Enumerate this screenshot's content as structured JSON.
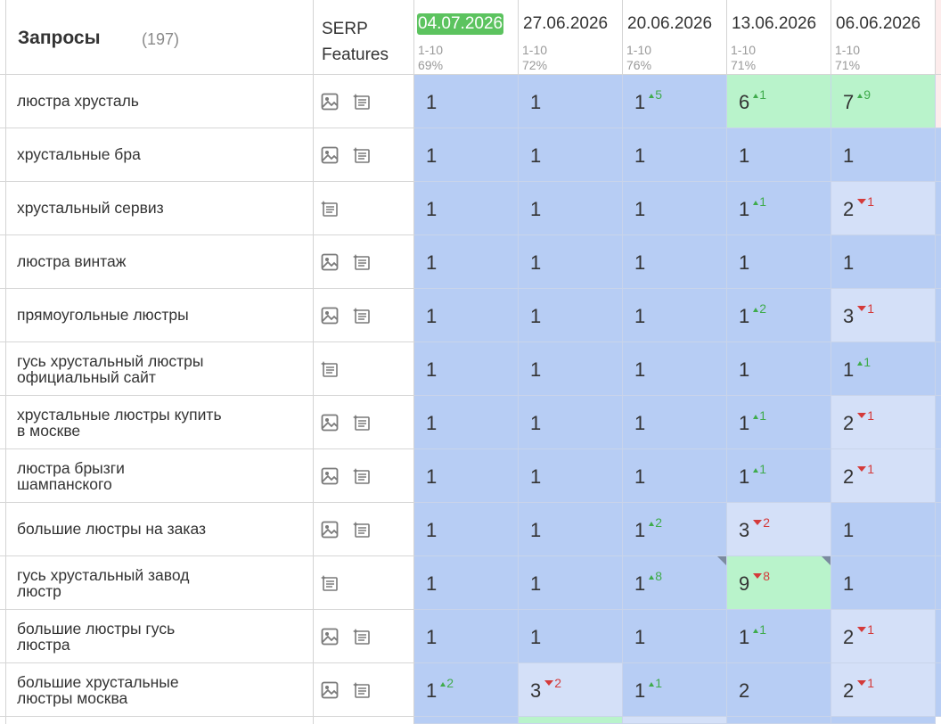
{
  "header": {
    "title": "Запросы",
    "count": "(197)",
    "serp_label_1": "SERP",
    "serp_label_2": "Features"
  },
  "dates": [
    {
      "date": "04.07.2026",
      "range": "1-10",
      "pct": "69%",
      "active": true
    },
    {
      "date": "27.06.2026",
      "range": "1-10",
      "pct": "72%",
      "active": false
    },
    {
      "date": "20.06.2026",
      "range": "1-10",
      "pct": "76%",
      "active": false
    },
    {
      "date": "13.06.2026",
      "range": "1-10",
      "pct": "71%",
      "active": false
    },
    {
      "date": "06.06.2026",
      "range": "1-10",
      "pct": "71%",
      "active": false
    }
  ],
  "rows": [
    {
      "query": [
        "люстра хрусталь"
      ],
      "icons": [
        "image-icon",
        "snippet-icon"
      ],
      "cells": [
        {
          "v": "1",
          "c": "top"
        },
        {
          "v": "1",
          "c": "top"
        },
        {
          "v": "1",
          "d": "5",
          "dir": "up",
          "c": "top"
        },
        {
          "v": "6",
          "d": "1",
          "dir": "up",
          "c": "green"
        },
        {
          "v": "7",
          "d": "9",
          "dir": "up",
          "c": "green"
        }
      ]
    },
    {
      "query": [
        "хрустальные бра"
      ],
      "icons": [
        "image-icon",
        "snippet-icon"
      ],
      "cells": [
        {
          "v": "1",
          "c": "top"
        },
        {
          "v": "1",
          "c": "top"
        },
        {
          "v": "1",
          "c": "top"
        },
        {
          "v": "1",
          "c": "top"
        },
        {
          "v": "1",
          "c": "top"
        }
      ]
    },
    {
      "query": [
        "хрустальный сервиз"
      ],
      "icons": [
        "snippet-icon"
      ],
      "cells": [
        {
          "v": "1",
          "c": "top"
        },
        {
          "v": "1",
          "c": "top"
        },
        {
          "v": "1",
          "c": "top"
        },
        {
          "v": "1",
          "d": "1",
          "dir": "up",
          "c": "top"
        },
        {
          "v": "2",
          "d": "1",
          "dir": "down",
          "c": "mid"
        }
      ]
    },
    {
      "query": [
        "люстра винтаж"
      ],
      "icons": [
        "image-icon",
        "snippet-icon"
      ],
      "cells": [
        {
          "v": "1",
          "c": "top"
        },
        {
          "v": "1",
          "c": "top"
        },
        {
          "v": "1",
          "c": "top"
        },
        {
          "v": "1",
          "c": "top"
        },
        {
          "v": "1",
          "c": "top"
        }
      ]
    },
    {
      "query": [
        "прямоугольные люстры"
      ],
      "icons": [
        "image-icon",
        "snippet-icon"
      ],
      "cells": [
        {
          "v": "1",
          "c": "top"
        },
        {
          "v": "1",
          "c": "top"
        },
        {
          "v": "1",
          "c": "top"
        },
        {
          "v": "1",
          "d": "2",
          "dir": "up",
          "c": "top"
        },
        {
          "v": "3",
          "d": "1",
          "dir": "down",
          "c": "mid"
        }
      ]
    },
    {
      "query": [
        "гусь хрустальный люстры",
        "официальный сайт"
      ],
      "icons": [
        "snippet-icon"
      ],
      "cells": [
        {
          "v": "1",
          "c": "top"
        },
        {
          "v": "1",
          "c": "top"
        },
        {
          "v": "1",
          "c": "top"
        },
        {
          "v": "1",
          "c": "top"
        },
        {
          "v": "1",
          "d": "1",
          "dir": "up",
          "c": "top"
        }
      ]
    },
    {
      "query": [
        "хрустальные люстры купить",
        "в москве"
      ],
      "icons": [
        "image-icon",
        "snippet-icon"
      ],
      "cells": [
        {
          "v": "1",
          "c": "top"
        },
        {
          "v": "1",
          "c": "top"
        },
        {
          "v": "1",
          "c": "top"
        },
        {
          "v": "1",
          "d": "1",
          "dir": "up",
          "c": "top"
        },
        {
          "v": "2",
          "d": "1",
          "dir": "down",
          "c": "mid"
        }
      ]
    },
    {
      "query": [
        "люстра брызги",
        "шампанского"
      ],
      "icons": [
        "image-icon",
        "snippet-icon"
      ],
      "cells": [
        {
          "v": "1",
          "c": "top"
        },
        {
          "v": "1",
          "c": "top"
        },
        {
          "v": "1",
          "c": "top"
        },
        {
          "v": "1",
          "d": "1",
          "dir": "up",
          "c": "top"
        },
        {
          "v": "2",
          "d": "1",
          "dir": "down",
          "c": "mid"
        }
      ]
    },
    {
      "query": [
        "большие люстры на заказ"
      ],
      "icons": [
        "image-icon",
        "snippet-icon"
      ],
      "cells": [
        {
          "v": "1",
          "c": "top"
        },
        {
          "v": "1",
          "c": "top"
        },
        {
          "v": "1",
          "d": "2",
          "dir": "up",
          "c": "top"
        },
        {
          "v": "3",
          "d": "2",
          "dir": "down",
          "c": "mid"
        },
        {
          "v": "1",
          "c": "top"
        }
      ]
    },
    {
      "query": [
        "гусь хрустальный завод",
        "люстр"
      ],
      "icons": [
        "snippet-icon"
      ],
      "cells": [
        {
          "v": "1",
          "c": "top"
        },
        {
          "v": "1",
          "c": "top"
        },
        {
          "v": "1",
          "d": "8",
          "dir": "up",
          "c": "top",
          "corner": true
        },
        {
          "v": "9",
          "d": "8",
          "dir": "down",
          "c": "green",
          "corner": true
        },
        {
          "v": "1",
          "c": "top"
        }
      ]
    },
    {
      "query": [
        "большие люстры гусь",
        "люстра"
      ],
      "icons": [
        "image-icon",
        "snippet-icon"
      ],
      "cells": [
        {
          "v": "1",
          "c": "top"
        },
        {
          "v": "1",
          "c": "top"
        },
        {
          "v": "1",
          "c": "top"
        },
        {
          "v": "1",
          "d": "1",
          "dir": "up",
          "c": "top"
        },
        {
          "v": "2",
          "d": "1",
          "dir": "down",
          "c": "mid"
        }
      ]
    },
    {
      "query": [
        "большие хрустальные",
        "люстры москва"
      ],
      "icons": [
        "image-icon",
        "snippet-icon"
      ],
      "cells": [
        {
          "v": "1",
          "d": "2",
          "dir": "up",
          "c": "top"
        },
        {
          "v": "3",
          "d": "2",
          "dir": "down",
          "c": "mid"
        },
        {
          "v": "1",
          "d": "1",
          "dir": "up",
          "c": "top"
        },
        {
          "v": "2",
          "c": "top"
        },
        {
          "v": "2",
          "d": "1",
          "dir": "down",
          "c": "mid"
        }
      ]
    }
  ],
  "colors": {
    "top": "#b7cdf4",
    "mid": "#d4e0f8",
    "green": "#b9f3cb",
    "active_date": "#5cc35f",
    "up": "#3fab4c",
    "down": "#d43a3a"
  }
}
